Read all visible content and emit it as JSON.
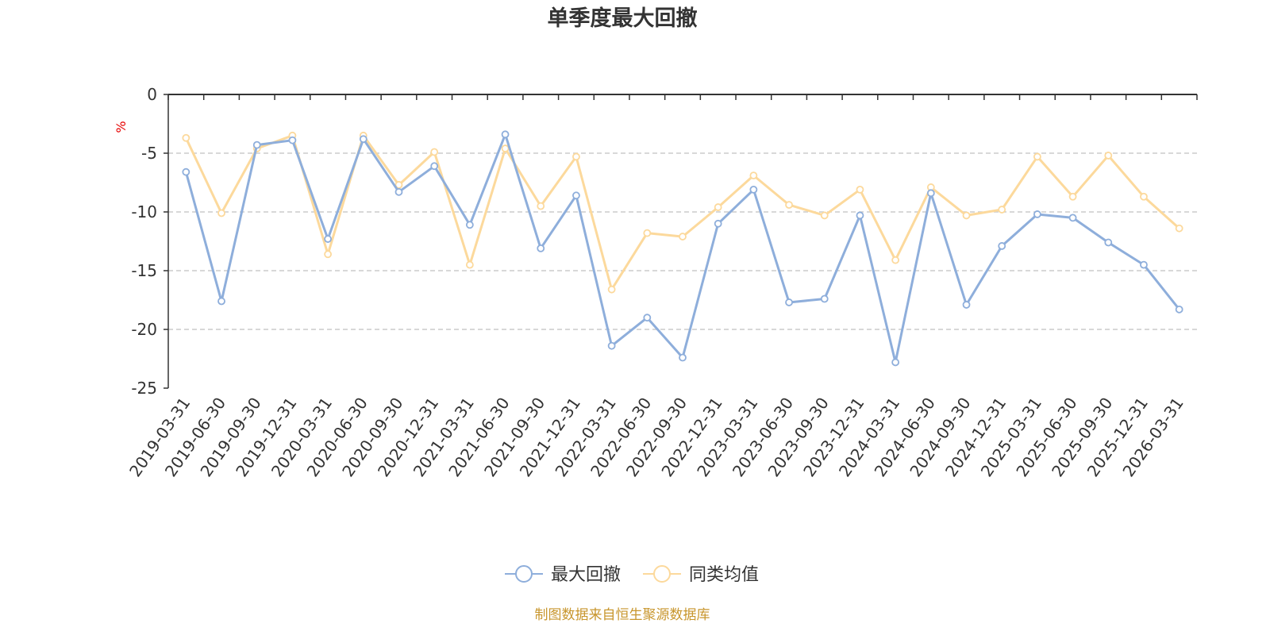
{
  "chart_data": {
    "type": "line",
    "title": "单季度最大回撤",
    "ylabel": "%",
    "ylim": [
      -25,
      0
    ],
    "yticks": [
      0,
      -5,
      -10,
      -15,
      -20,
      -25
    ],
    "grid": true,
    "legend_position": "bottom-center",
    "categories": [
      "2019-03-31",
      "2019-06-30",
      "2019-09-30",
      "2019-12-31",
      "2020-03-31",
      "2020-06-30",
      "2020-09-30",
      "2020-12-31",
      "2021-03-31",
      "2021-06-30",
      "2021-09-30",
      "2021-12-31",
      "2022-03-31",
      "2022-06-30",
      "2022-09-30",
      "2022-12-31",
      "2023-03-31",
      "2023-06-30",
      "2023-09-30",
      "2023-12-31",
      "2024-03-31",
      "2024-06-30",
      "2024-09-30",
      "2024-12-31",
      "2025-03-31",
      "2025-06-30",
      "2025-09-30",
      "2025-12-31",
      "2026-03-31"
    ],
    "series": [
      {
        "name": "最大回撤",
        "color": "#8eaedb",
        "values": [
          -6.6,
          -17.6,
          -4.3,
          -3.9,
          -12.3,
          -3.8,
          -8.3,
          -6.1,
          -11.1,
          -3.4,
          -13.1,
          -8.6,
          -21.4,
          -19.0,
          -22.4,
          -11.0,
          -8.1,
          -17.7,
          -17.4,
          -10.3,
          -22.8,
          -8.4,
          -17.9,
          -12.9,
          -10.2,
          -10.5,
          -12.6,
          -14.5,
          -18.3
        ]
      },
      {
        "name": "同类均值",
        "color": "#fcd99c",
        "values": [
          -3.7,
          -10.1,
          -4.6,
          -3.5,
          -13.6,
          -3.5,
          -7.7,
          -4.9,
          -14.5,
          -4.6,
          -9.5,
          -5.3,
          -16.6,
          -11.8,
          -12.1,
          -9.6,
          -6.9,
          -9.4,
          -10.3,
          -8.1,
          -14.1,
          -7.9,
          -10.3,
          -9.8,
          -5.3,
          -8.7,
          -5.2,
          -8.7,
          -11.4
        ]
      }
    ],
    "source_note": "制图数据来自恒生聚源数据库"
  }
}
